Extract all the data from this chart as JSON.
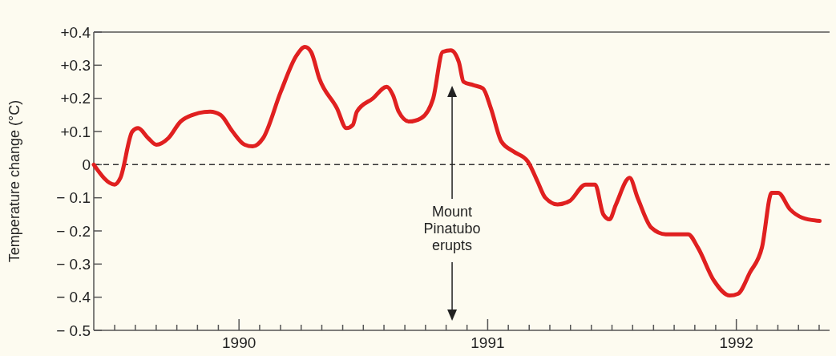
{
  "chart_data": {
    "type": "line",
    "ylabel": "Temperature change (°C)",
    "x": [
      1989.416,
      1989.5,
      1989.523,
      1989.571,
      1989.594,
      1989.635,
      1989.668,
      1989.716,
      1989.765,
      1989.813,
      1989.884,
      1989.926,
      1989.974,
      1990.023,
      1990.055,
      1990.097,
      1990.168,
      1990.232,
      1990.265,
      1990.29,
      1990.323,
      1990.394,
      1990.432,
      1990.458,
      1990.474,
      1990.539,
      1990.594,
      1990.619,
      1990.642,
      1990.684,
      1990.732,
      1990.781,
      1990.819,
      1990.852,
      1990.884,
      1990.903,
      1990.942,
      1990.981,
      1991.013,
      1991.055,
      1991.103,
      1991.161,
      1991.2,
      1991.232,
      1991.281,
      1991.329,
      1991.394,
      1991.432,
      1991.465,
      1991.49,
      1991.516,
      1991.571,
      1991.603,
      1991.658,
      1991.716,
      1991.781,
      1991.806,
      1991.845,
      1991.91,
      1991.974,
      1992.006,
      1992.055,
      1992.103,
      1992.142,
      1992.168,
      1992.216,
      1992.265,
      1992.335
    ],
    "series": [
      {
        "color": "#e02020",
        "values": [
          0.0,
          -0.06,
          -0.04,
          0.1,
          0.11,
          0.08,
          0.06,
          0.08,
          0.13,
          0.15,
          0.16,
          0.15,
          0.1,
          0.06,
          0.055,
          0.08,
          0.22,
          0.33,
          0.355,
          0.34,
          0.26,
          0.17,
          0.11,
          0.12,
          0.16,
          0.2,
          0.235,
          0.21,
          0.16,
          0.13,
          0.14,
          0.2,
          0.34,
          0.345,
          0.31,
          0.25,
          0.24,
          0.23,
          0.17,
          0.07,
          0.04,
          0.01,
          -0.05,
          -0.1,
          -0.12,
          -0.11,
          -0.06,
          -0.06,
          -0.15,
          -0.165,
          -0.12,
          -0.04,
          -0.1,
          -0.19,
          -0.21,
          -0.21,
          -0.21,
          -0.25,
          -0.35,
          -0.395,
          -0.39,
          -0.325,
          -0.25,
          -0.085,
          -0.085,
          -0.135,
          -0.16,
          -0.17
        ]
      }
    ],
    "xlim": [
      1989.416,
      1992.375
    ],
    "xticks": [
      {
        "value": 1989.5,
        "label": null
      },
      {
        "value": 1989.583,
        "label": null
      },
      {
        "value": 1989.667,
        "label": null
      },
      {
        "value": 1989.75,
        "label": null
      },
      {
        "value": 1989.833,
        "label": null
      },
      {
        "value": 1989.917,
        "label": null
      },
      1990,
      {
        "value": 1990.083,
        "label": null
      },
      {
        "value": 1990.167,
        "label": null
      },
      {
        "value": 1990.25,
        "label": null
      },
      {
        "value": 1990.333,
        "label": null
      },
      {
        "value": 1990.417,
        "label": null
      },
      {
        "value": 1990.5,
        "label": null
      },
      {
        "value": 1990.583,
        "label": null
      },
      {
        "value": 1990.667,
        "label": null
      },
      {
        "value": 1990.75,
        "label": null
      },
      {
        "value": 1990.833,
        "label": null
      },
      {
        "value": 1990.917,
        "label": null
      },
      1991,
      {
        "value": 1991.083,
        "label": null
      },
      {
        "value": 1991.167,
        "label": null
      },
      {
        "value": 1991.25,
        "label": null
      },
      {
        "value": 1991.333,
        "label": null
      },
      {
        "value": 1991.417,
        "label": null
      },
      {
        "value": 1991.5,
        "label": null
      },
      {
        "value": 1991.583,
        "label": null
      },
      {
        "value": 1991.667,
        "label": null
      },
      {
        "value": 1991.75,
        "label": null
      },
      {
        "value": 1991.833,
        "label": null
      },
      {
        "value": 1991.917,
        "label": null
      },
      1992,
      {
        "value": 1992.083,
        "label": null
      },
      {
        "value": 1992.167,
        "label": null
      },
      {
        "value": 1992.25,
        "label": null
      },
      {
        "value": 1992.333,
        "label": null
      }
    ],
    "ylim": [
      -0.5,
      0.4
    ],
    "yticks": [
      {
        "value": 0.4,
        "label": "+0.4"
      },
      {
        "value": 0.3,
        "label": "+0.3"
      },
      {
        "value": 0.2,
        "label": "+0.2"
      },
      {
        "value": 0.1,
        "label": "+0.1"
      },
      0,
      {
        "value": -0.1,
        "label": "− 0.1"
      },
      {
        "value": -0.2,
        "label": "− 0.2"
      },
      {
        "value": -0.3,
        "label": "− 0.3"
      },
      {
        "value": -0.4,
        "label": "− 0.4"
      },
      {
        "value": -0.5,
        "label": "− 0.5"
      }
    ],
    "ref_lines": [
      {
        "axis": "y",
        "value": 0,
        "color": "#333333",
        "line_style": "dashed"
      }
    ],
    "annotations": [
      "Mount Pinatubo erupts"
    ],
    "grid": false,
    "marker": "none",
    "line_style": "solid"
  }
}
